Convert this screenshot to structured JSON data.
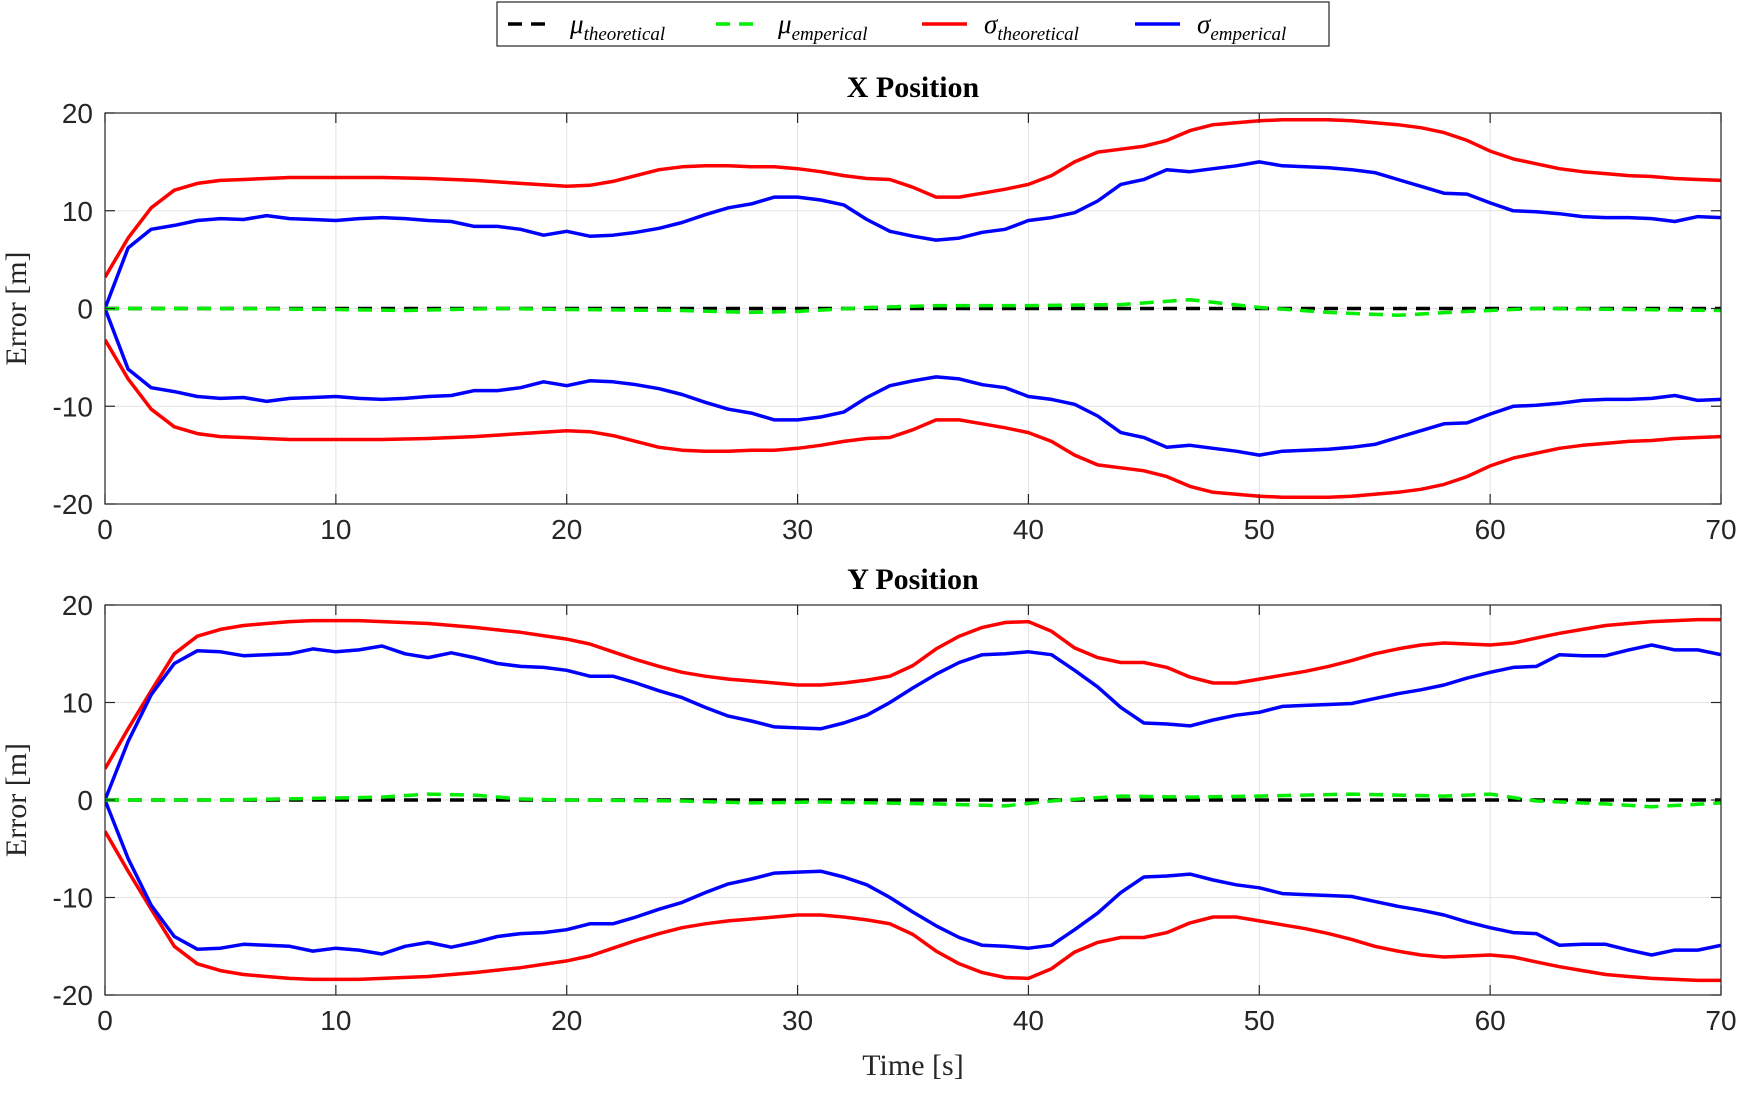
{
  "legend": {
    "entries": [
      {
        "symbol": "μ",
        "sub": "theoretical",
        "color": "#000000",
        "dashed": true
      },
      {
        "symbol": "μ",
        "sub": "emperical",
        "color": "#00ee00",
        "dashed": true
      },
      {
        "symbol": "σ",
        "sub": "theoretical",
        "color": "#ff0000",
        "dashed": false
      },
      {
        "symbol": "σ",
        "sub": "emperical",
        "color": "#0000ff",
        "dashed": false
      }
    ]
  },
  "chart_data": [
    {
      "type": "line",
      "title": "X Position",
      "xlabel": "",
      "ylabel": "Error [m]",
      "xlim": [
        0,
        70
      ],
      "ylim": [
        -20,
        20
      ],
      "xticks": [
        0,
        10,
        20,
        30,
        40,
        50,
        60,
        70
      ],
      "yticks": [
        -20,
        -10,
        0,
        10,
        20
      ],
      "grid": true,
      "legend_position": "top-center, outside",
      "series": [
        {
          "key": "mu_theoretical",
          "color": "#000000",
          "dashed": true,
          "symmetric": false,
          "x": [
            0,
            70
          ],
          "y": [
            0,
            0
          ]
        },
        {
          "key": "mu_emperical",
          "color": "#00ee00",
          "dashed": true,
          "symmetric": false,
          "x": [
            0,
            5,
            10,
            13,
            17,
            20,
            25,
            28,
            30,
            33,
            36,
            40,
            44,
            47,
            50,
            53,
            56,
            59,
            62,
            66,
            70
          ],
          "y": [
            0,
            0,
            -0.1,
            -0.2,
            0,
            -0.1,
            -0.2,
            -0.4,
            -0.3,
            0.1,
            0.3,
            0.3,
            0.4,
            0.9,
            0.1,
            -0.4,
            -0.7,
            -0.3,
            0,
            -0.1,
            -0.2
          ]
        },
        {
          "key": "sigma_theoretical",
          "color": "#ff0000",
          "dashed": false,
          "symmetric": true,
          "x": [
            0,
            1,
            2,
            3,
            4,
            5,
            6,
            8,
            10,
            12,
            14,
            16,
            18,
            20,
            21,
            22,
            23,
            24,
            25,
            26,
            27,
            28,
            29,
            30,
            31,
            32,
            33,
            34,
            35,
            36,
            37,
            38,
            39,
            40,
            41,
            42,
            43,
            44,
            45,
            46,
            47,
            48,
            49,
            50,
            51,
            52,
            53,
            54,
            55,
            56,
            57,
            58,
            59,
            60,
            61,
            62,
            63,
            64,
            65,
            66,
            67,
            68,
            69,
            70
          ],
          "y": [
            3.2,
            7.2,
            10.3,
            12.1,
            12.8,
            13.1,
            13.2,
            13.4,
            13.4,
            13.4,
            13.3,
            13.1,
            12.8,
            12.5,
            12.6,
            13.0,
            13.6,
            14.2,
            14.5,
            14.6,
            14.6,
            14.5,
            14.5,
            14.3,
            14.0,
            13.6,
            13.3,
            13.2,
            12.4,
            11.4,
            11.4,
            11.8,
            12.2,
            12.7,
            13.6,
            15.0,
            16.0,
            16.3,
            16.6,
            17.2,
            18.2,
            18.8,
            19.0,
            19.2,
            19.3,
            19.3,
            19.3,
            19.2,
            19.0,
            18.8,
            18.5,
            18.0,
            17.2,
            16.1,
            15.3,
            14.8,
            14.3,
            14.0,
            13.8,
            13.6,
            13.5,
            13.3,
            13.2,
            13.1
          ]
        },
        {
          "key": "sigma_emperical",
          "color": "#0000ff",
          "dashed": false,
          "symmetric": true,
          "x": [
            0,
            1,
            2,
            3,
            4,
            5,
            6,
            7,
            8,
            9,
            10,
            11,
            12,
            13,
            14,
            15,
            16,
            17,
            18,
            19,
            20,
            21,
            22,
            23,
            24,
            25,
            26,
            27,
            28,
            29,
            30,
            31,
            32,
            33,
            34,
            35,
            36,
            37,
            38,
            39,
            40,
            41,
            42,
            43,
            44,
            45,
            46,
            47,
            48,
            49,
            50,
            51,
            52,
            53,
            54,
            55,
            56,
            57,
            58,
            59,
            60,
            61,
            62,
            63,
            64,
            65,
            66,
            67,
            68,
            69,
            70
          ],
          "y": [
            0,
            6.2,
            8.1,
            8.5,
            9.0,
            9.2,
            9.1,
            9.5,
            9.2,
            9.1,
            9.0,
            9.2,
            9.3,
            9.2,
            9.0,
            8.9,
            8.4,
            8.4,
            8.1,
            7.5,
            7.9,
            7.4,
            7.5,
            7.8,
            8.2,
            8.8,
            9.6,
            10.3,
            10.7,
            11.4,
            11.4,
            11.1,
            10.6,
            9.1,
            7.9,
            7.4,
            7.0,
            7.2,
            7.8,
            8.1,
            9.0,
            9.3,
            9.8,
            11.0,
            12.7,
            13.2,
            14.2,
            14.0,
            14.3,
            14.6,
            15.0,
            14.6,
            14.5,
            14.4,
            14.2,
            13.9,
            13.2,
            12.5,
            11.8,
            11.7,
            10.8,
            10.0,
            9.9,
            9.7,
            9.4,
            9.3,
            9.3,
            9.2,
            8.9,
            9.4,
            9.3
          ]
        }
      ]
    },
    {
      "type": "line",
      "title": "Y Position",
      "xlabel": "Time [s]",
      "ylabel": "Error [m]",
      "xlim": [
        0,
        70
      ],
      "ylim": [
        -20,
        20
      ],
      "xticks": [
        0,
        10,
        20,
        30,
        40,
        50,
        60,
        70
      ],
      "yticks": [
        -20,
        -10,
        0,
        10,
        20
      ],
      "grid": true,
      "series": [
        {
          "key": "mu_theoretical",
          "color": "#000000",
          "dashed": true,
          "symmetric": false,
          "x": [
            0,
            70
          ],
          "y": [
            0,
            0
          ]
        },
        {
          "key": "mu_emperical",
          "color": "#00ee00",
          "dashed": true,
          "symmetric": false,
          "x": [
            0,
            5,
            10,
            12,
            14,
            16,
            18,
            20,
            25,
            28,
            31,
            36,
            39,
            41,
            44,
            47,
            50,
            54,
            58,
            60,
            62,
            65,
            67,
            70
          ],
          "y": [
            0,
            0,
            0.2,
            0.3,
            0.6,
            0.5,
            0.1,
            0,
            -0.1,
            -0.3,
            -0.2,
            -0.4,
            -0.6,
            -0.1,
            0.4,
            0.3,
            0.4,
            0.6,
            0.4,
            0.6,
            -0.1,
            -0.4,
            -0.7,
            -0.3
          ]
        },
        {
          "key": "sigma_theoretical",
          "color": "#ff0000",
          "dashed": false,
          "symmetric": true,
          "x": [
            0,
            1,
            2,
            3,
            4,
            5,
            6,
            7,
            8,
            9,
            10,
            11,
            12,
            14,
            16,
            18,
            20,
            21,
            22,
            23,
            24,
            25,
            26,
            27,
            28,
            29,
            30,
            31,
            32,
            33,
            34,
            35,
            36,
            37,
            38,
            39,
            40,
            41,
            42,
            43,
            44,
            45,
            46,
            47,
            48,
            49,
            50,
            51,
            52,
            53,
            54,
            55,
            56,
            57,
            58,
            59,
            60,
            61,
            62,
            63,
            64,
            65,
            66,
            67,
            68,
            69,
            70
          ],
          "y": [
            3.2,
            7.3,
            11.2,
            15.0,
            16.8,
            17.5,
            17.9,
            18.1,
            18.3,
            18.4,
            18.4,
            18.4,
            18.3,
            18.1,
            17.7,
            17.2,
            16.5,
            16.0,
            15.2,
            14.4,
            13.7,
            13.1,
            12.7,
            12.4,
            12.2,
            12.0,
            11.8,
            11.8,
            12.0,
            12.3,
            12.7,
            13.8,
            15.5,
            16.8,
            17.7,
            18.2,
            18.3,
            17.3,
            15.6,
            14.6,
            14.1,
            14.1,
            13.6,
            12.6,
            12.0,
            12.0,
            12.4,
            12.8,
            13.2,
            13.7,
            14.3,
            15.0,
            15.5,
            15.9,
            16.1,
            16.0,
            15.9,
            16.1,
            16.6,
            17.1,
            17.5,
            17.9,
            18.1,
            18.3,
            18.4,
            18.5,
            18.5
          ]
        },
        {
          "key": "sigma_emperical",
          "color": "#0000ff",
          "dashed": false,
          "symmetric": true,
          "x": [
            0,
            1,
            2,
            3,
            4,
            5,
            6,
            7,
            8,
            9,
            10,
            11,
            12,
            13,
            14,
            15,
            16,
            17,
            18,
            19,
            20,
            21,
            22,
            23,
            24,
            25,
            26,
            27,
            28,
            29,
            30,
            31,
            32,
            33,
            34,
            35,
            36,
            37,
            38,
            39,
            40,
            41,
            42,
            43,
            44,
            45,
            46,
            47,
            48,
            49,
            50,
            51,
            52,
            53,
            54,
            55,
            56,
            57,
            58,
            59,
            60,
            61,
            62,
            63,
            64,
            65,
            66,
            67,
            68,
            69,
            70
          ],
          "y": [
            0,
            6.0,
            10.8,
            14.0,
            15.3,
            15.2,
            14.8,
            14.9,
            15.0,
            15.5,
            15.2,
            15.4,
            15.8,
            15.0,
            14.6,
            15.1,
            14.6,
            14.0,
            13.7,
            13.6,
            13.3,
            12.7,
            12.7,
            12.0,
            11.2,
            10.5,
            9.5,
            8.6,
            8.1,
            7.5,
            7.4,
            7.3,
            7.9,
            8.7,
            10.0,
            11.5,
            12.9,
            14.1,
            14.9,
            15.0,
            15.2,
            14.9,
            13.3,
            11.6,
            9.5,
            7.9,
            7.8,
            7.6,
            8.2,
            8.7,
            9.0,
            9.6,
            9.7,
            9.8,
            9.9,
            10.4,
            10.9,
            11.3,
            11.8,
            12.5,
            13.1,
            13.6,
            13.7,
            14.9,
            14.8,
            14.8,
            15.4,
            15.9,
            15.4,
            15.4,
            14.9
          ]
        }
      ]
    }
  ]
}
